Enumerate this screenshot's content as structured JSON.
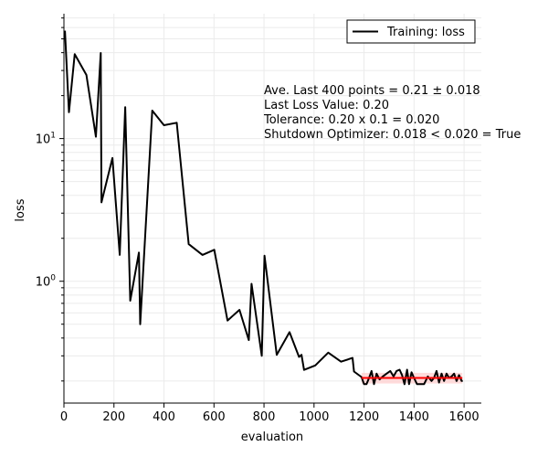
{
  "chart_data": {
    "type": "line",
    "xlabel": "evaluation",
    "ylabel": "loss",
    "xlim": [
      0,
      1669
    ],
    "ylim": [
      0.14,
      75
    ],
    "yscale": "log",
    "grid": true,
    "legend_placement": "top-right",
    "x_ticks": [
      0,
      200,
      400,
      600,
      800,
      1000,
      1200,
      1400,
      1600
    ],
    "y_ticks": [
      {
        "value": 1,
        "base": "10",
        "exp": "0"
      },
      {
        "value": 10,
        "base": "10",
        "exp": "1"
      }
    ],
    "series": [
      {
        "name": "Training: loss",
        "color": "#000000",
        "x": [
          4,
          20,
          43,
          90,
          128,
          147,
          150,
          194,
          223,
          245,
          265,
          300,
          305,
          353,
          400,
          451,
          499,
          554,
          601,
          654,
          702,
          739,
          750,
          791,
          802,
          851,
          902,
          940,
          950,
          960,
          1005,
          1057,
          1108,
          1154,
          1160,
          1190,
          1200,
          1210,
          1220,
          1230,
          1240,
          1250,
          1262,
          1275,
          1290,
          1305,
          1318,
          1330,
          1342,
          1352,
          1362,
          1372,
          1380,
          1390,
          1400,
          1412,
          1425,
          1440,
          1455,
          1470,
          1480,
          1490,
          1500,
          1510,
          1520,
          1530,
          1540,
          1550,
          1560,
          1570,
          1580,
          1590,
          1595
        ],
        "y": [
          57,
          15.3,
          39,
          27.9,
          10.3,
          39.8,
          3.57,
          7.3,
          1.53,
          16.6,
          0.73,
          1.59,
          0.5,
          15.7,
          12.4,
          12.9,
          1.82,
          1.53,
          1.66,
          0.53,
          0.63,
          0.387,
          0.96,
          0.3,
          1.51,
          0.305,
          0.44,
          0.295,
          0.305,
          0.239,
          0.257,
          0.316,
          0.273,
          0.29,
          0.233,
          0.213,
          0.19,
          0.19,
          0.21,
          0.235,
          0.19,
          0.225,
          0.205,
          0.215,
          0.225,
          0.235,
          0.215,
          0.235,
          0.24,
          0.22,
          0.19,
          0.24,
          0.19,
          0.23,
          0.21,
          0.19,
          0.19,
          0.19,
          0.215,
          0.2,
          0.21,
          0.235,
          0.195,
          0.225,
          0.2,
          0.225,
          0.21,
          0.215,
          0.225,
          0.2,
          0.22,
          0.2,
          0.2
        ]
      }
    ],
    "average_line": {
      "x_start": 1190,
      "x_end": 1593,
      "mean": 0.21,
      "std": 0.018,
      "color": "#ff0000",
      "band_color": "#ffcccc"
    },
    "annotations": [
      "Ave. Last 400 points = 0.21 ± 0.018",
      "Last Loss Value: 0.20",
      "Tolerance: 0.20 x 0.1 = 0.020",
      "Shutdown Optimizer: 0.018 < 0.020 = True"
    ]
  }
}
